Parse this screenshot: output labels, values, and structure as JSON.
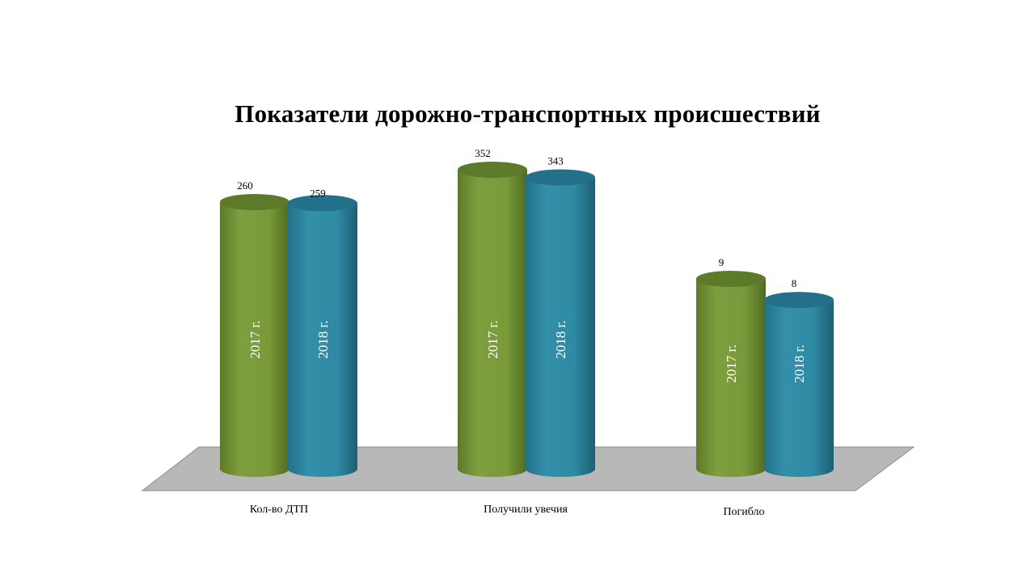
{
  "chart_data": {
    "type": "bar",
    "title": "Показатели дорожно-транспортных происшествий",
    "categories": [
      "Кол-во ДТП",
      "Получили увечия",
      "Погибло"
    ],
    "series": [
      {
        "name": "2017 г.",
        "color": "#7a9a3a",
        "values": [
          260,
          352,
          9
        ]
      },
      {
        "name": "2018 г.",
        "color": "#2f8aa3",
        "values": [
          259,
          343,
          8
        ]
      }
    ],
    "xlabel": "",
    "ylabel": "",
    "grid": false,
    "legend": "none"
  }
}
